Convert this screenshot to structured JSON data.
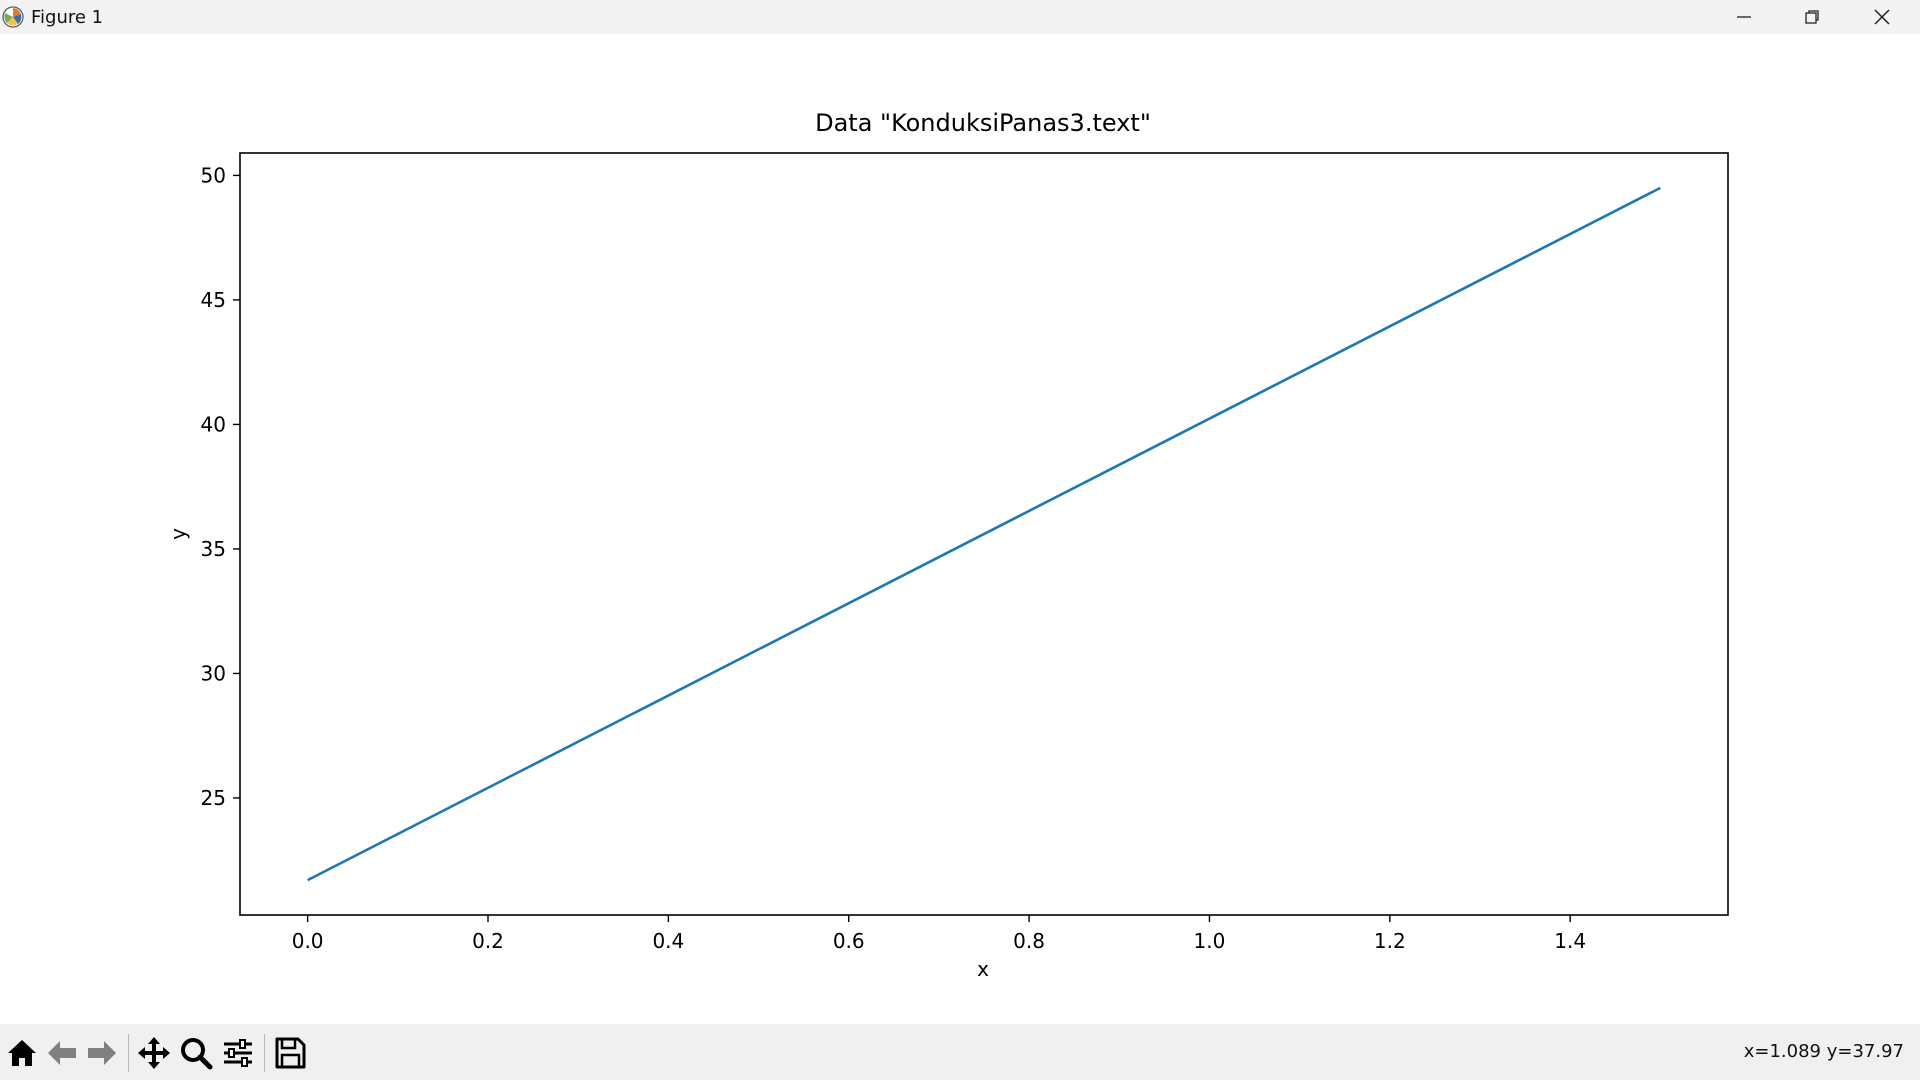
{
  "window": {
    "title": "Figure 1"
  },
  "toolbar": {
    "buttons": [
      "home-icon",
      "back-arrow-icon",
      "forward-arrow-icon",
      "pan-move-icon",
      "zoom-magnifier-icon",
      "subplots-config-icon",
      "save-disk-icon"
    ],
    "status": "x=1.089 y=37.97"
  },
  "chart_data": {
    "type": "line",
    "title": "Data \"KonduksiPanas3.text\"",
    "xlabel": "x",
    "ylabel": "y",
    "xlim": [
      -0.075,
      1.575
    ],
    "ylim": [
      20.3,
      50.9
    ],
    "xticks": [
      "0.0",
      "0.2",
      "0.4",
      "0.6",
      "0.8",
      "1.0",
      "1.2",
      "1.4"
    ],
    "yticks": [
      "25",
      "30",
      "35",
      "40",
      "45",
      "50"
    ],
    "series": [
      {
        "x": [
          0.0,
          1.5
        ],
        "y": [
          21.7,
          49.5
        ],
        "color": "#1f77b4"
      }
    ],
    "grid": false
  }
}
